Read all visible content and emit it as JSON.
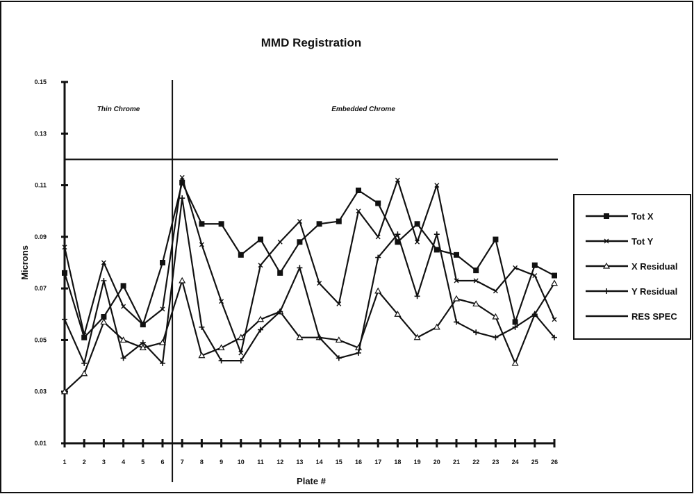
{
  "chart_data": {
    "type": "line",
    "title": "MMD Registration",
    "xlabel": "Plate #",
    "ylabel": "Microns",
    "categories": [
      "1",
      "2",
      "3",
      "4",
      "5",
      "6",
      "7",
      "8",
      "9",
      "10",
      "11",
      "12",
      "13",
      "14",
      "15",
      "16",
      "17",
      "18",
      "19",
      "20",
      "21",
      "22",
      "23",
      "24",
      "25",
      "26"
    ],
    "ylim": [
      0.01,
      0.15
    ],
    "yticks": [
      0.01,
      0.03,
      0.05,
      0.07,
      0.09,
      0.11,
      0.13,
      0.15
    ],
    "ytick_labels": [
      "0.01",
      "0.03",
      "0.05",
      "0.07",
      "0.09",
      "0.11",
      "0.13",
      "0.15"
    ],
    "grid": false,
    "legend_position": "right",
    "regions": [
      {
        "label": "Thin Chrome",
        "from": 1,
        "to": 6.5
      },
      {
        "label": "Embedded Chrome",
        "from": 6.5,
        "to": 26
      }
    ],
    "divider_at": 6.5,
    "series": [
      {
        "name": "Tot X",
        "marker": "square",
        "values": [
          0.076,
          0.051,
          0.059,
          0.071,
          0.056,
          0.08,
          0.111,
          0.095,
          0.095,
          0.083,
          0.089,
          0.076,
          0.088,
          0.095,
          0.096,
          0.108,
          0.103,
          0.088,
          0.095,
          0.085,
          0.083,
          0.077,
          0.089,
          0.057,
          0.079,
          0.075
        ]
      },
      {
        "name": "Tot Y",
        "marker": "x",
        "values": [
          0.086,
          0.052,
          0.08,
          0.063,
          0.056,
          0.062,
          0.113,
          0.087,
          0.065,
          0.045,
          0.079,
          0.088,
          0.096,
          0.072,
          0.064,
          0.1,
          0.09,
          0.112,
          0.088,
          0.11,
          0.073,
          0.073,
          0.069,
          0.078,
          0.075,
          0.058
        ]
      },
      {
        "name": "X Residual",
        "marker": "triangle",
        "values": [
          0.03,
          0.037,
          0.057,
          0.05,
          0.047,
          0.049,
          0.073,
          0.044,
          0.047,
          0.051,
          0.058,
          0.061,
          0.051,
          0.051,
          0.05,
          0.047,
          0.069,
          0.06,
          0.051,
          0.055,
          0.066,
          0.064,
          0.059,
          0.041,
          0.06,
          0.072
        ]
      },
      {
        "name": "Y Residual",
        "marker": "plus",
        "values": [
          0.058,
          0.041,
          0.073,
          0.043,
          0.049,
          0.041,
          0.105,
          0.055,
          0.042,
          0.042,
          0.054,
          0.061,
          0.078,
          0.051,
          0.043,
          0.045,
          0.082,
          0.091,
          0.067,
          0.091,
          0.057,
          0.053,
          0.051,
          0.055,
          0.06,
          0.051
        ]
      },
      {
        "name": "RES SPEC",
        "marker": "none",
        "values": [
          0.12,
          0.12,
          0.12,
          0.12,
          0.12,
          0.12,
          0.12,
          0.12,
          0.12,
          0.12,
          0.12,
          0.12,
          0.12,
          0.12,
          0.12,
          0.12,
          0.12,
          0.12,
          0.12,
          0.12,
          0.12,
          0.12,
          0.12,
          0.12,
          0.12,
          0.12
        ]
      }
    ],
    "colors": {
      "line": "#111111",
      "background": "#ffffff"
    }
  }
}
